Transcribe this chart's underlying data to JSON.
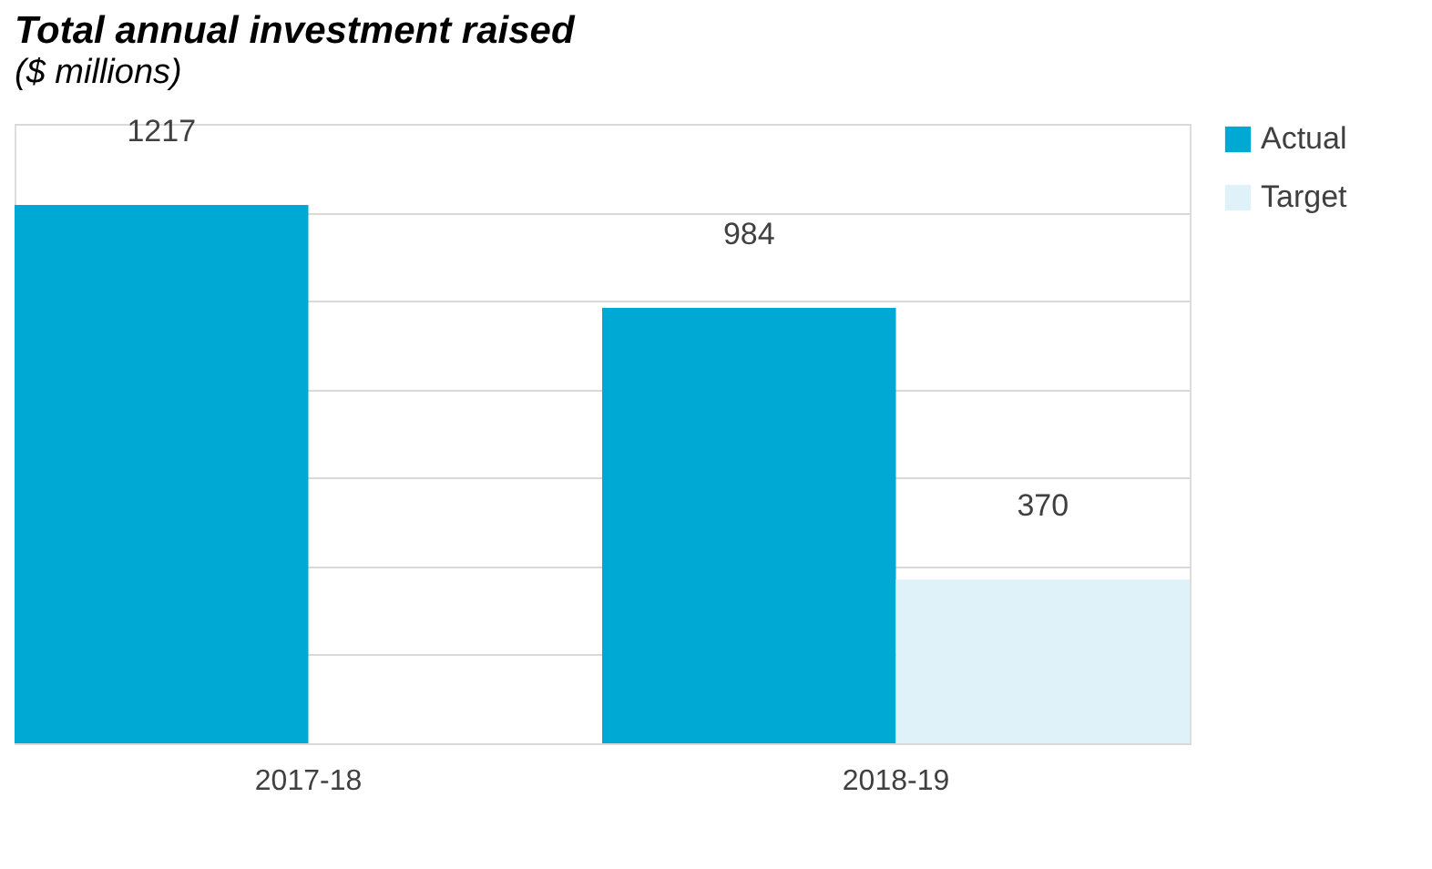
{
  "chart_data": {
    "type": "bar",
    "title": "Total annual investment raised",
    "subtitle": "($ millions)",
    "categories": [
      "2017-18",
      "2018-19"
    ],
    "series": [
      {
        "name": "Actual",
        "color": "#00a9d4",
        "values": [
          1217,
          984
        ]
      },
      {
        "name": "Target",
        "color": "#dff2f9",
        "values": [
          null,
          370
        ]
      }
    ],
    "ylim": [
      0,
      1400
    ],
    "yticks": [
      0,
      200,
      400,
      600,
      800,
      1000,
      1200,
      1400
    ],
    "tick_labels": "x",
    "grid": "y",
    "legend": "right",
    "data_labels": true
  }
}
